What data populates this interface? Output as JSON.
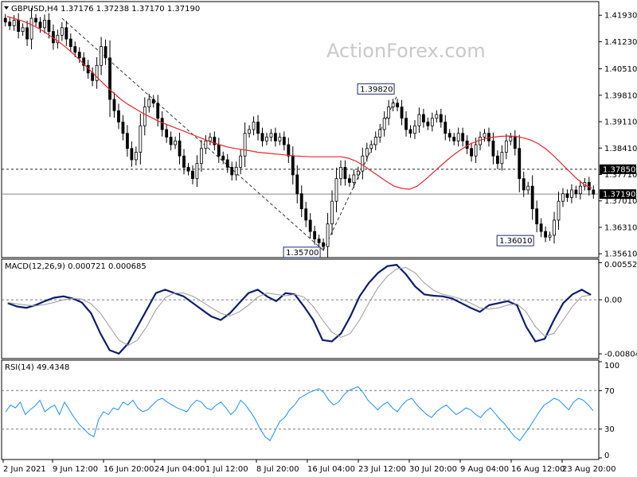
{
  "chart_data": [
    {
      "type": "candlestick",
      "title": "GBPUSD,H4  1.37176 1.37238 1.37170 1.37190",
      "watermark": "ActionForex.com",
      "ylim": [
        1.3555,
        1.4225
      ],
      "yticks": [
        "1.41930",
        "1.41230",
        "1.40510",
        "1.39810",
        "1.39110",
        "1.38410",
        "1.37710",
        "1.37010",
        "1.36310",
        "1.35610"
      ],
      "ytick_values": [
        1.4193,
        1.4123,
        1.4051,
        1.3981,
        1.3911,
        1.3841,
        1.3771,
        1.3701,
        1.3631,
        1.3561
      ],
      "price_line_labels": [
        {
          "value": 1.3785,
          "label": "1.37850",
          "style": "dashed"
        },
        {
          "value": 1.3719,
          "label": "1.37190",
          "style": "solid"
        }
      ],
      "annotations": [
        {
          "text": "1.35700",
          "x_index": 73,
          "value": 1.357
        },
        {
          "text": "1.39820",
          "x_index": 90,
          "value": 1.3982
        },
        {
          "text": "1.36010",
          "x_index": 122,
          "value": 1.3601
        }
      ],
      "trendlines": [
        {
          "from": {
            "x_index": 13,
            "value": 1.4185
          },
          "to": {
            "x_index": 73,
            "value": 1.357
          }
        },
        {
          "from": {
            "x_index": 73,
            "value": 1.357
          },
          "to": {
            "x_index": 90,
            "value": 1.3982
          }
        }
      ],
      "ma_color": "#e8262e",
      "candle_color": "#000000",
      "series": [
        {
          "name": "close",
          "values": [
            1.4175,
            1.4165,
            1.418,
            1.415,
            1.416,
            1.413,
            1.4185,
            1.4175,
            1.416,
            1.418,
            1.415,
            1.412,
            1.414,
            1.416,
            1.413,
            1.411,
            1.4095,
            1.408,
            1.406,
            1.404,
            1.402,
            1.406,
            1.411,
            1.408,
            1.397,
            1.394,
            1.391,
            1.388,
            1.384,
            1.381,
            1.383,
            1.39,
            1.395,
            1.397,
            1.396,
            1.392,
            1.389,
            1.387,
            1.385,
            1.386,
            1.382,
            1.379,
            1.378,
            1.376,
            1.38,
            1.384,
            1.386,
            1.387,
            1.385,
            1.382,
            1.381,
            1.379,
            1.377,
            1.379,
            1.382,
            1.388,
            1.389,
            1.391,
            1.388,
            1.386,
            1.387,
            1.388,
            1.386,
            1.387,
            1.385,
            1.382,
            1.377,
            1.372,
            1.368,
            1.365,
            1.362,
            1.36,
            1.359,
            1.358,
            1.364,
            1.37,
            1.376,
            1.379,
            1.376,
            1.375,
            1.377,
            1.378,
            1.382,
            1.384,
            1.385,
            1.387,
            1.389,
            1.392,
            1.395,
            1.396,
            1.395,
            1.392,
            1.389,
            1.388,
            1.39,
            1.393,
            1.391,
            1.39,
            1.392,
            1.393,
            1.391,
            1.388,
            1.387,
            1.386,
            1.388,
            1.386,
            1.384,
            1.382,
            1.385,
            1.387,
            1.388,
            1.386,
            1.382,
            1.38,
            1.383,
            1.386,
            1.387,
            1.384,
            1.376,
            1.373,
            1.374,
            1.368,
            1.364,
            1.362,
            1.3605,
            1.361,
            1.365,
            1.37,
            1.372,
            1.371,
            1.373,
            1.372,
            1.374,
            1.375,
            1.373,
            1.3719
          ]
        },
        {
          "name": "ma",
          "values": [
            1.419,
            1.4184,
            1.4178,
            1.417,
            1.416,
            1.4148,
            1.4134,
            1.412,
            1.4104,
            1.4086,
            1.4066,
            1.4046,
            1.4026,
            1.4006,
            1.3988,
            1.397,
            1.3956,
            1.3944,
            1.3932,
            1.3922,
            1.3912,
            1.3904,
            1.3896,
            1.3888,
            1.388,
            1.3872,
            1.3864,
            1.3856,
            1.385,
            1.3844,
            1.384,
            1.3837,
            1.3834,
            1.383,
            1.3828,
            1.3826,
            1.3824,
            1.3822,
            1.382,
            1.3819,
            1.3818,
            1.3818,
            1.3818,
            1.3818,
            1.3818,
            1.3814,
            1.3806,
            1.3794,
            1.378,
            1.3766,
            1.3752,
            1.374,
            1.3734,
            1.3732,
            1.374,
            1.3756,
            1.3774,
            1.3792,
            1.381,
            1.3826,
            1.384,
            1.3852,
            1.386,
            1.3866,
            1.387,
            1.3872,
            1.3873,
            1.3872,
            1.3868,
            1.3862,
            1.3852,
            1.3838,
            1.382,
            1.38,
            1.378,
            1.376,
            1.3744,
            1.3735
          ]
        }
      ]
    },
    {
      "type": "line",
      "title": "MACD(12,26,9) 0.000721 0.000685",
      "ylim": [
        -0.0085,
        0.0058
      ],
      "yticks": [
        "0.00552",
        "0.00",
        "-0.00804"
      ],
      "ytick_values": [
        0.00552,
        0.0,
        -0.00804
      ],
      "ref_levels": [
        0.0
      ],
      "series": [
        {
          "name": "MACD",
          "color": "#0f1e6e",
          "values": [
            -0.0005,
            -0.001,
            -0.0012,
            -0.0008,
            -0.0002,
            0.0003,
            0.0005,
            0.0002,
            -0.0004,
            -0.002,
            -0.005,
            -0.0075,
            -0.008,
            -0.0065,
            -0.004,
            -0.0015,
            0.001,
            0.0015,
            0.001,
            0.0005,
            -0.0005,
            -0.0015,
            -0.0025,
            -0.003,
            -0.002,
            -0.0005,
            0.001,
            0.0015,
            0.0005,
            -0.0002,
            0.001,
            0.0008,
            -0.001,
            -0.003,
            -0.006,
            -0.0062,
            -0.005,
            -0.0025,
            0.0005,
            0.0025,
            0.004,
            0.005,
            0.0052,
            0.0038,
            0.002,
            0.0008,
            0.0006,
            0.0005,
            0.0002,
            -0.0005,
            -0.0012,
            -0.0018,
            -0.0008,
            -0.0005,
            -0.0002,
            -0.0008,
            -0.004,
            -0.0062,
            -0.0058,
            -0.003,
            -0.0005,
            0.0008,
            0.0015,
            0.00072
          ]
        },
        {
          "name": "signal",
          "color": "#9a9a9a",
          "values": [
            -0.0004,
            -0.0006,
            -0.0008,
            -0.0009,
            -0.0007,
            -0.0004,
            0.0,
            0.0002,
            0.0001,
            -0.0006,
            -0.002,
            -0.004,
            -0.006,
            -0.0068,
            -0.006,
            -0.004,
            -0.0015,
            0.0003,
            0.001,
            0.001,
            0.0005,
            -0.0003,
            -0.0012,
            -0.002,
            -0.0024,
            -0.0018,
            -0.0008,
            0.0004,
            0.001,
            0.0008,
            0.0006,
            0.0008,
            0.0004,
            -0.001,
            -0.003,
            -0.0048,
            -0.0056,
            -0.005,
            -0.003,
            -0.0005,
            0.0018,
            0.0035,
            0.0046,
            0.0048,
            0.004,
            0.0025,
            0.0014,
            0.0008,
            0.0005,
            0.0001,
            -0.0005,
            -0.0012,
            -0.0014,
            -0.0012,
            -0.0008,
            -0.0006,
            -0.0018,
            -0.004,
            -0.0054,
            -0.005,
            -0.003,
            -0.001,
            0.0005,
            0.000685
          ]
        }
      ]
    },
    {
      "type": "line",
      "title": "RSI(14) 49.4348",
      "ylim": [
        0,
        100
      ],
      "yticks": [
        "100",
        "70",
        "30",
        "0"
      ],
      "ytick_values": [
        100,
        70,
        30,
        0
      ],
      "ref_levels": [
        70,
        30
      ],
      "series": [
        {
          "name": "RSI",
          "color": "#1e90ff",
          "values": [
            48,
            55,
            52,
            58,
            45,
            50,
            54,
            60,
            48,
            52,
            55,
            45,
            58,
            50,
            42,
            35,
            30,
            25,
            22,
            40,
            48,
            45,
            52,
            50,
            58,
            55,
            60,
            52,
            48,
            50,
            55,
            60,
            62,
            58,
            55,
            52,
            50,
            48,
            55,
            60,
            58,
            52,
            50,
            55,
            58,
            52,
            45,
            50,
            60,
            55,
            48,
            40,
            30,
            22,
            18,
            28,
            38,
            42,
            50,
            55,
            62,
            65,
            68,
            70,
            72,
            68,
            60,
            55,
            58,
            65,
            70,
            72,
            74,
            68,
            60,
            55,
            50,
            55,
            58,
            52,
            48,
            55,
            60,
            62,
            55,
            50,
            45,
            42,
            48,
            52,
            55,
            50,
            45,
            48,
            52,
            50,
            45,
            42,
            48,
            52,
            46,
            40,
            35,
            28,
            22,
            18,
            25,
            32,
            40,
            48,
            55,
            58,
            62,
            60,
            55,
            50,
            58,
            62,
            60,
            55,
            49
          ]
        }
      ]
    }
  ],
  "xaxis": {
    "labels": [
      "2 Jun 2021",
      "9 Jun 12:00",
      "16 Jun 20:00",
      "24 Jun 04:00",
      "1 Jul 12:00",
      "8 Jul 20:00",
      "16 Jul 04:00",
      "23 Jul 12:00",
      "30 Jul 20:00",
      "9 Aug 04:00",
      "16 Aug 12:00",
      "23 Aug 20:00"
    ]
  }
}
